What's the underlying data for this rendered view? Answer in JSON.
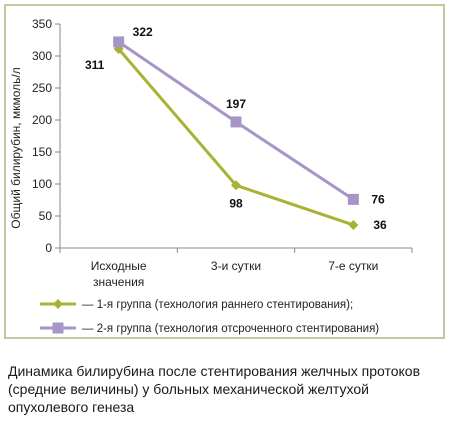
{
  "chart_data": {
    "type": "line",
    "categories": [
      "Исходные значения",
      "3-и сутки",
      "7-е сутки"
    ],
    "category_lines": [
      [
        "Исходные",
        "значения"
      ],
      [
        "3-и сутки"
      ],
      [
        "7-е сутки"
      ]
    ],
    "ylabel": "Общий билирубин, мкмоль/л",
    "xlabel": "",
    "ylim": [
      0,
      350
    ],
    "yticks": [
      "0",
      "50",
      "100",
      "150",
      "200",
      "250",
      "300",
      "350"
    ],
    "grid": false,
    "legend_position": "bottom",
    "series": [
      {
        "name": "— 1-я группа (технология раннего стентирования);",
        "values": [
          311,
          98,
          36
        ],
        "labels": [
          "311",
          "98",
          "36"
        ],
        "color": "#a8b334",
        "marker": "diamond"
      },
      {
        "name": "— 2-я группа (технология отсроченного стентирования)",
        "values": [
          322,
          197,
          76
        ],
        "labels": [
          "322",
          "197",
          "76"
        ],
        "color": "#a695c6",
        "marker": "square"
      }
    ]
  },
  "caption": "Динамика билирубина после стентирования желчных протоков (средние величины) у больных механической желтухой опухолевого генеза"
}
